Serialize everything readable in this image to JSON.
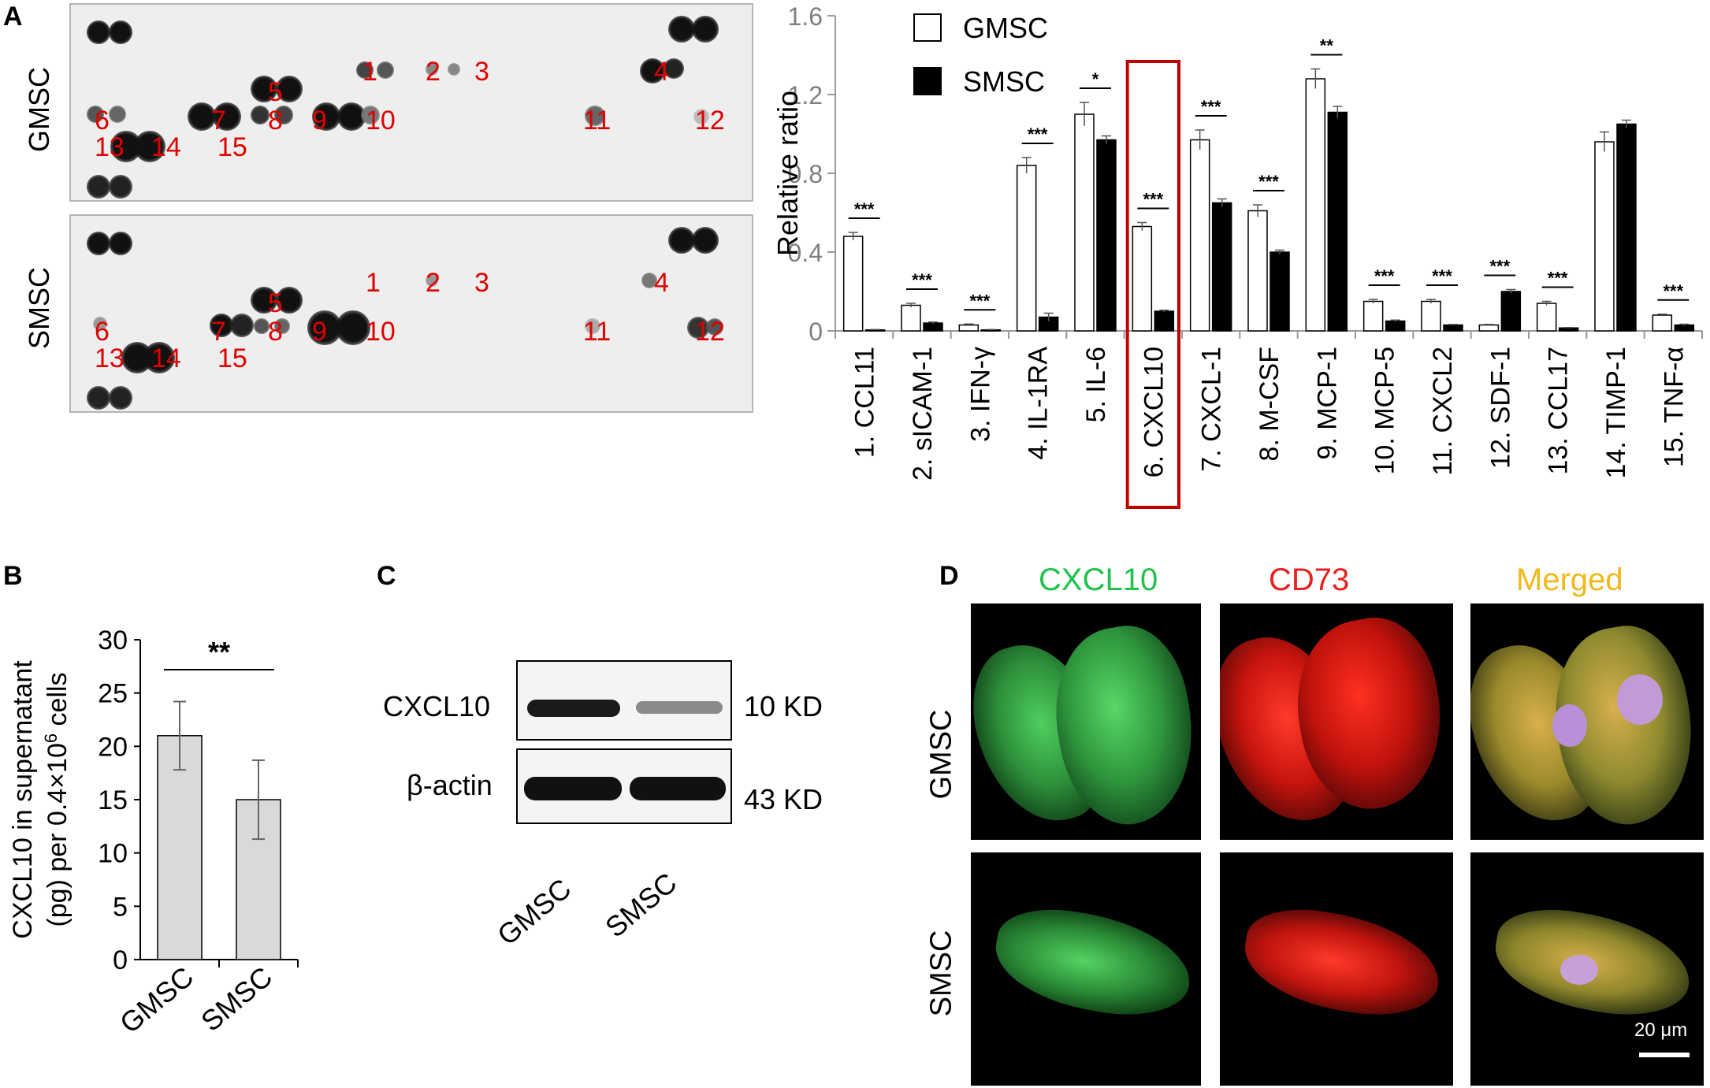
{
  "panels": {
    "a": "A",
    "b": "B",
    "c": "C",
    "d": "D"
  },
  "panel_a": {
    "row_labels": [
      "GMSC",
      "SMSC"
    ],
    "spot_numbers": [
      "1",
      "2",
      "3",
      "4",
      "5",
      "6",
      "7",
      "8",
      "9",
      "10",
      "11",
      "12",
      "13",
      "14",
      "15"
    ]
  },
  "panel_c": {
    "rows": [
      "CXCL10",
      "β-actin"
    ],
    "sizes": [
      "10 KD",
      "43 KD"
    ],
    "lanes": [
      "GMSC",
      "SMSC"
    ]
  },
  "panel_d": {
    "columns": [
      "CXCL10",
      "CD73",
      "Merged"
    ],
    "column_colors": [
      "#1fc24a",
      "#e8201e",
      "#f0b81a"
    ],
    "rows": [
      "GMSC",
      "SMSC"
    ],
    "scale_bar": "20 μm"
  },
  "chart_data": [
    {
      "type": "bar",
      "ylabel": "Relative ratio",
      "ylim": [
        0,
        1.6
      ],
      "yticks": [
        "0",
        "0.4",
        "0.8",
        "1.2",
        "1.6"
      ],
      "legend": "top-left",
      "categories": [
        "1. CCL11",
        "2. sICAM-1",
        "3. IFN-γ",
        "4. IL-1RA",
        "5. IL-6",
        "6. CXCL10",
        "7. CXCL-1",
        "8. M-CSF",
        "9. MCP-1",
        "10. MCP-5",
        "11. CXCL2",
        "12. SDF-1",
        "13. CCL17",
        "14. TIMP-1",
        "15. TNF-α"
      ],
      "series": [
        {
          "name": "GMSC",
          "color": "#ffffff",
          "values": [
            0.48,
            0.13,
            0.03,
            0.84,
            1.1,
            0.53,
            0.97,
            0.61,
            1.28,
            0.15,
            0.15,
            0.03,
            0.14,
            0.96,
            0.08
          ],
          "errors": [
            0.02,
            0.01,
            0.005,
            0.04,
            0.06,
            0.02,
            0.05,
            0.03,
            0.05,
            0.01,
            0.01,
            0.003,
            0.01,
            0.05,
            0.005
          ]
        },
        {
          "name": "SMSC",
          "color": "#000000",
          "values": [
            0.005,
            0.04,
            0.005,
            0.07,
            0.97,
            0.1,
            0.65,
            0.4,
            1.11,
            0.05,
            0.03,
            0.2,
            0.015,
            1.05,
            0.03
          ],
          "errors": [
            0.002,
            0.005,
            0.002,
            0.02,
            0.02,
            0.005,
            0.02,
            0.01,
            0.03,
            0.005,
            0.003,
            0.01,
            0.002,
            0.02,
            0.004
          ]
        }
      ],
      "significance": [
        "***",
        "***",
        "***",
        "***",
        "*",
        "***",
        "***",
        "***",
        "**",
        "***",
        "***",
        "***",
        "***",
        "",
        "***"
      ],
      "highlight": "6. CXCL10"
    },
    {
      "type": "bar",
      "ylabel": "CXCL10 in supernatant (pg) per 0.4×10⁶ cells",
      "ylabel_lines": [
        "CXCL10 in supernatant",
        "(pg) per  0.4×10",
        "6",
        " cells"
      ],
      "ylim": [
        0,
        30
      ],
      "yticks": [
        "0",
        "5",
        "10",
        "15",
        "20",
        "25",
        "30"
      ],
      "categories": [
        "GMSC",
        "SMSC"
      ],
      "values": [
        21.0,
        15.0
      ],
      "errors": [
        3.2,
        3.7
      ],
      "significance": "**",
      "bar_color": "#d9d9d9"
    }
  ]
}
